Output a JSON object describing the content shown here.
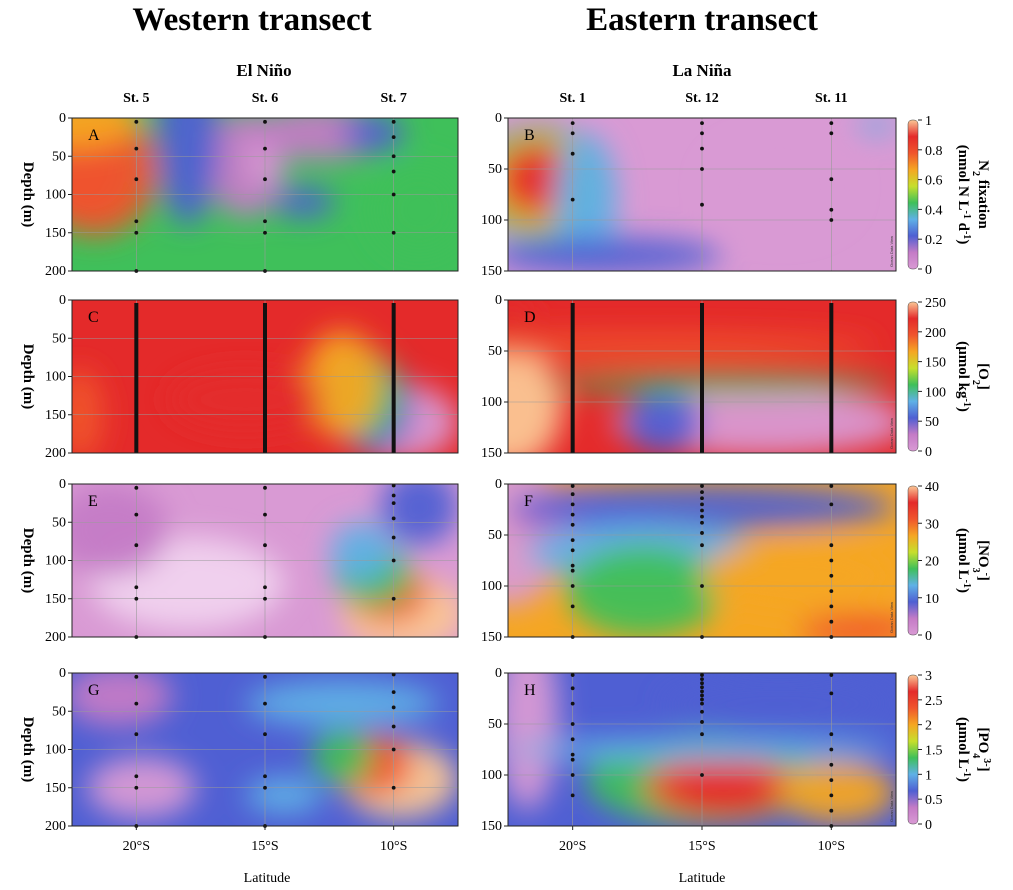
{
  "headers": {
    "western_title": "Western transect",
    "eastern_title": "Eastern transect",
    "western_phase": "El Niño",
    "eastern_phase": "La Niña",
    "x_label": "Latitude",
    "depth_label": "Depth (m)",
    "watermark": "Ocean Data View"
  },
  "colors": {
    "scale": [
      "#d99ad4",
      "#c47bc6",
      "#4f5fd3",
      "#5fb1e6",
      "#3fc05a",
      "#c6df2c",
      "#f5a623",
      "#f0552d",
      "#e42a2a",
      "#fbc795"
    ],
    "grid": "#9a9a9a",
    "stations": "#111111"
  },
  "chart_data": [
    {
      "id": "A",
      "type": "heatmap",
      "transect": "western",
      "x_ticks": [
        "20°S",
        "15°S",
        "10°S"
      ],
      "x_tick_values": [
        20,
        15,
        10
      ],
      "xlim": [
        22.5,
        7.5
      ],
      "ylim": [
        0,
        200
      ],
      "y_ticks": [
        0,
        50,
        100,
        150,
        200
      ],
      "stations": [
        {
          "name": "St. 5",
          "lat": 20,
          "depths": [
            5,
            40,
            80,
            135,
            150,
            200
          ]
        },
        {
          "name": "St. 6",
          "lat": 15,
          "depths": [
            5,
            40,
            80,
            135,
            150,
            200
          ]
        },
        {
          "name": "St. 7",
          "lat": 10,
          "depths": [
            5,
            25,
            50,
            70,
            100,
            150
          ]
        }
      ],
      "variable": "N2 fixation",
      "unit": "nmol N L-1 d-1"
    },
    {
      "id": "B",
      "type": "heatmap",
      "transect": "eastern",
      "x_ticks": [
        "20°S",
        "15°S",
        "10°S"
      ],
      "x_tick_values": [
        20,
        15,
        10
      ],
      "xlim": [
        22.5,
        7.5
      ],
      "ylim": [
        0,
        150
      ],
      "y_ticks": [
        0,
        50,
        100,
        150
      ],
      "stations": [
        {
          "name": "St. 1",
          "lat": 20,
          "depths": [
            5,
            15,
            35,
            80
          ]
        },
        {
          "name": "St. 12",
          "lat": 15,
          "depths": [
            5,
            15,
            30,
            50,
            85
          ]
        },
        {
          "name": "St. 11",
          "lat": 10,
          "depths": [
            5,
            15,
            60,
            90,
            100
          ]
        }
      ],
      "variable": "N2 fixation",
      "unit": "nmol N L-1 d-1"
    },
    {
      "id": "C",
      "type": "heatmap",
      "transect": "western",
      "x_ticks": [
        "20°S",
        "15°S",
        "10°S"
      ],
      "x_tick_values": [
        20,
        15,
        10
      ],
      "xlim": [
        22.5,
        7.5
      ],
      "ylim": [
        0,
        200
      ],
      "y_ticks": [
        0,
        50,
        100,
        150,
        200
      ],
      "stations": [
        {
          "name": "St. 5",
          "lat": 20,
          "continuous": true
        },
        {
          "name": "St. 6",
          "lat": 15,
          "continuous": true
        },
        {
          "name": "St. 7",
          "lat": 10,
          "continuous": true
        }
      ],
      "variable": "[O2]",
      "unit": "µmol kg-1"
    },
    {
      "id": "D",
      "type": "heatmap",
      "transect": "eastern",
      "x_ticks": [
        "20°S",
        "15°S",
        "10°S"
      ],
      "x_tick_values": [
        20,
        15,
        10
      ],
      "xlim": [
        22.5,
        7.5
      ],
      "ylim": [
        0,
        150
      ],
      "y_ticks": [
        0,
        50,
        100,
        150
      ],
      "stations": [
        {
          "name": "St. 1",
          "lat": 20,
          "continuous": true
        },
        {
          "name": "St. 12",
          "lat": 15,
          "continuous": true
        },
        {
          "name": "St. 11",
          "lat": 10,
          "continuous": true
        }
      ],
      "variable": "[O2]",
      "unit": "µmol kg-1"
    },
    {
      "id": "E",
      "type": "heatmap",
      "transect": "western",
      "x_ticks": [
        "20°S",
        "15°S",
        "10°S"
      ],
      "x_tick_values": [
        20,
        15,
        10
      ],
      "xlim": [
        22.5,
        7.5
      ],
      "ylim": [
        0,
        200
      ],
      "y_ticks": [
        0,
        50,
        100,
        150,
        200
      ],
      "stations": [
        {
          "name": "St. 5",
          "lat": 20,
          "depths": [
            5,
            40,
            80,
            135,
            150,
            200
          ]
        },
        {
          "name": "St. 6",
          "lat": 15,
          "depths": [
            5,
            40,
            80,
            135,
            150,
            200
          ]
        },
        {
          "name": "St. 7",
          "lat": 10,
          "depths": [
            2,
            15,
            25,
            45,
            70,
            100,
            150
          ]
        }
      ],
      "variable": "[NO3-]",
      "unit": "µmol L-1"
    },
    {
      "id": "F",
      "type": "heatmap",
      "transect": "eastern",
      "x_ticks": [
        "20°S",
        "15°S",
        "10°S"
      ],
      "x_tick_values": [
        20,
        15,
        10
      ],
      "xlim": [
        22.5,
        7.5
      ],
      "ylim": [
        0,
        150
      ],
      "y_ticks": [
        0,
        50,
        100,
        150
      ],
      "stations": [
        {
          "name": "St. 1",
          "lat": 20,
          "depths": [
            2,
            10,
            20,
            30,
            40,
            55,
            65,
            80,
            85,
            100,
            120,
            150
          ]
        },
        {
          "name": "St. 12",
          "lat": 15,
          "depths": [
            2,
            8,
            14,
            20,
            26,
            32,
            38,
            48,
            60,
            100,
            150
          ]
        },
        {
          "name": "St. 11",
          "lat": 10,
          "depths": [
            2,
            20,
            60,
            75,
            90,
            105,
            120,
            135,
            150
          ]
        }
      ],
      "variable": "[NO3-]",
      "unit": "µmol L-1"
    },
    {
      "id": "G",
      "type": "heatmap",
      "transect": "western",
      "x_ticks": [
        "20°S",
        "15°S",
        "10°S"
      ],
      "x_tick_values": [
        20,
        15,
        10
      ],
      "xlim": [
        22.5,
        7.5
      ],
      "ylim": [
        0,
        200
      ],
      "y_ticks": [
        0,
        50,
        100,
        150,
        200
      ],
      "stations": [
        {
          "name": "St. 5",
          "lat": 20,
          "depths": [
            5,
            40,
            80,
            135,
            150,
            200
          ]
        },
        {
          "name": "St. 6",
          "lat": 15,
          "depths": [
            5,
            40,
            80,
            135,
            150,
            200
          ]
        },
        {
          "name": "St. 7",
          "lat": 10,
          "depths": [
            2,
            25,
            45,
            70,
            100,
            150
          ]
        }
      ],
      "variable": "[PO43-]",
      "unit": "µmol L-1"
    },
    {
      "id": "H",
      "type": "heatmap",
      "transect": "eastern",
      "x_ticks": [
        "20°S",
        "15°S",
        "10°S"
      ],
      "x_tick_values": [
        20,
        15,
        10
      ],
      "xlim": [
        22.5,
        7.5
      ],
      "ylim": [
        0,
        150
      ],
      "y_ticks": [
        0,
        50,
        100,
        150
      ],
      "stations": [
        {
          "name": "St. 1",
          "lat": 20,
          "depths": [
            2,
            15,
            30,
            50,
            65,
            80,
            85,
            100,
            120
          ]
        },
        {
          "name": "St. 12",
          "lat": 15,
          "depths": [
            2,
            6,
            10,
            14,
            18,
            22,
            26,
            30,
            38,
            48,
            60,
            100
          ]
        },
        {
          "name": "St. 11",
          "lat": 10,
          "depths": [
            2,
            20,
            60,
            75,
            90,
            105,
            120,
            135,
            150
          ]
        }
      ],
      "variable": "[PO43-]",
      "unit": "µmol L-1"
    }
  ],
  "colorbars": [
    {
      "row": 0,
      "label_main": "N",
      "label_sub": "2",
      "label_rest": " fixation",
      "unit_text": "(nmol N L",
      "unit_exp1": "-1",
      "unit_mid": " d",
      "unit_exp2": "-1",
      "unit_close": ")",
      "ticks": [
        "0",
        "0.2",
        "0.4",
        "0.6",
        "0.8",
        "1"
      ],
      "tick_values": [
        0,
        0.2,
        0.4,
        0.6,
        0.8,
        1
      ],
      "min": 0,
      "max": 1
    },
    {
      "row": 1,
      "label_main": "[O",
      "label_sub": "2",
      "label_rest": "]",
      "unit_text": "(µmol kg",
      "unit_exp1": "-1",
      "unit_mid": "",
      "unit_exp2": "",
      "unit_close": ")",
      "ticks": [
        "0",
        "50",
        "100",
        "150",
        "200",
        "250"
      ],
      "tick_values": [
        0,
        50,
        100,
        150,
        200,
        250
      ],
      "min": 0,
      "max": 250
    },
    {
      "row": 2,
      "label_main": "[NO",
      "label_sub": "3",
      "label_rest": "-]",
      "unit_text": "(µmol L",
      "unit_exp1": "-1",
      "unit_mid": "",
      "unit_exp2": "",
      "unit_close": ")",
      "ticks": [
        "0",
        "10",
        "20",
        "30",
        "40"
      ],
      "tick_values": [
        0,
        10,
        20,
        30,
        40
      ],
      "min": 0,
      "max": 40
    },
    {
      "row": 3,
      "label_main": "[PO",
      "label_sub": "4",
      "label_rest": "3-]",
      "unit_text": "(µmol L",
      "unit_exp1": "-1",
      "unit_mid": "",
      "unit_exp2": "",
      "unit_close": ")",
      "ticks": [
        "0",
        "0.5",
        "1",
        "1.5",
        "2",
        "2.5",
        "3"
      ],
      "tick_values": [
        0,
        0.5,
        1,
        1.5,
        2,
        2.5,
        3
      ],
      "min": 0,
      "max": 3
    }
  ]
}
